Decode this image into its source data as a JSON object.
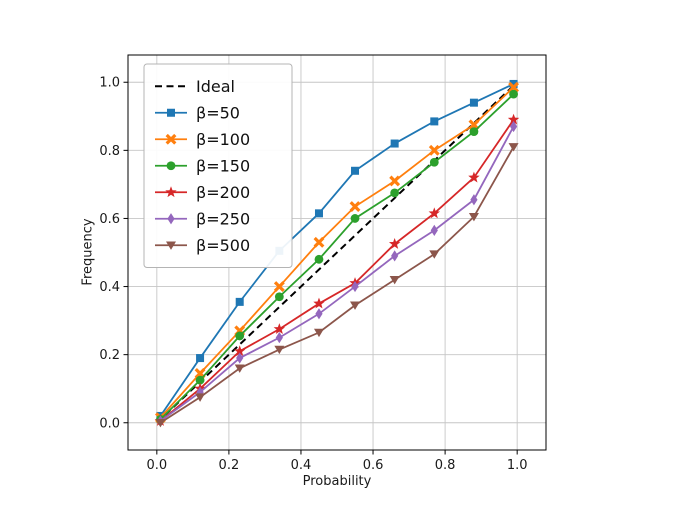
{
  "figure": {
    "background": "#ffffff",
    "spine_color": "#000000",
    "grid_color": "#c6c6c6"
  },
  "chart_data": {
    "type": "line",
    "title": "",
    "xlabel": "Probability",
    "ylabel": "Frequency",
    "xlim": [
      -0.08,
      1.08
    ],
    "ylim": [
      -0.08,
      1.08
    ],
    "xticks": [
      0.0,
      0.2,
      0.4,
      0.6,
      0.8,
      1.0
    ],
    "yticks": [
      0.0,
      0.2,
      0.4,
      0.6,
      0.8,
      1.0
    ],
    "grid": true,
    "legend_position": "upper-left",
    "x": [
      0.01,
      0.12,
      0.23,
      0.34,
      0.45,
      0.55,
      0.66,
      0.77,
      0.88,
      0.99
    ],
    "series": [
      {
        "name": "Ideal",
        "color": "#000000",
        "linestyle": "dashed",
        "marker": "none",
        "x": [
          0.0,
          1.0
        ],
        "values": [
          0.0,
          1.0
        ]
      },
      {
        "name": "β=50",
        "color": "#1f77b4",
        "linestyle": "solid",
        "marker": "square",
        "values": [
          0.02,
          0.19,
          0.355,
          0.505,
          0.615,
          0.74,
          0.82,
          0.885,
          0.94,
          0.995
        ]
      },
      {
        "name": "β=100",
        "color": "#ff7f0e",
        "linestyle": "solid",
        "marker": "x",
        "values": [
          0.015,
          0.145,
          0.27,
          0.4,
          0.53,
          0.635,
          0.71,
          0.8,
          0.875,
          0.985
        ]
      },
      {
        "name": "β=150",
        "color": "#2ca02c",
        "linestyle": "solid",
        "marker": "circle",
        "values": [
          0.01,
          0.125,
          0.255,
          0.37,
          0.48,
          0.6,
          0.675,
          0.765,
          0.855,
          0.965
        ]
      },
      {
        "name": "β=200",
        "color": "#d62728",
        "linestyle": "solid",
        "marker": "star",
        "values": [
          0.005,
          0.1,
          0.21,
          0.275,
          0.35,
          0.41,
          0.525,
          0.615,
          0.72,
          0.89
        ]
      },
      {
        "name": "β=250",
        "color": "#9467bd",
        "linestyle": "solid",
        "marker": "diamond",
        "values": [
          0.005,
          0.09,
          0.19,
          0.25,
          0.32,
          0.4,
          0.49,
          0.565,
          0.655,
          0.87
        ]
      },
      {
        "name": "β=500",
        "color": "#8c564b",
        "linestyle": "solid",
        "marker": "triangle-down",
        "values": [
          0.0,
          0.075,
          0.16,
          0.215,
          0.265,
          0.345,
          0.42,
          0.495,
          0.605,
          0.81
        ]
      }
    ]
  }
}
